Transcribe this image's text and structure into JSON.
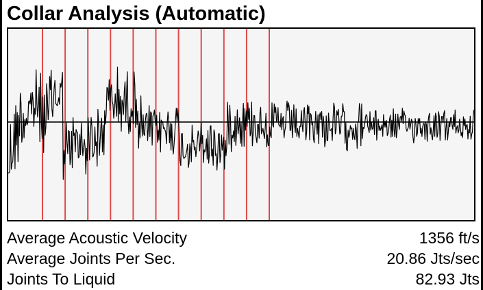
{
  "title": "Collar Analysis (Automatic)",
  "colors": {
    "plot_background": "#f5f5f5",
    "marker_lines": "#e04a4a",
    "signal": "#000000",
    "baseline": "#333333"
  },
  "chart_data": {
    "type": "line",
    "title": "",
    "xlabel": "",
    "ylabel": "",
    "collar_marker_count": 11,
    "grid": false
  },
  "stats": [
    {
      "label": "Average Acoustic Velocity",
      "value": "1356 ft/s"
    },
    {
      "label": "Average Joints Per Sec.",
      "value": "20.86 Jts/sec"
    },
    {
      "label": "Joints To Liquid",
      "value": "82.93 Jts"
    }
  ]
}
